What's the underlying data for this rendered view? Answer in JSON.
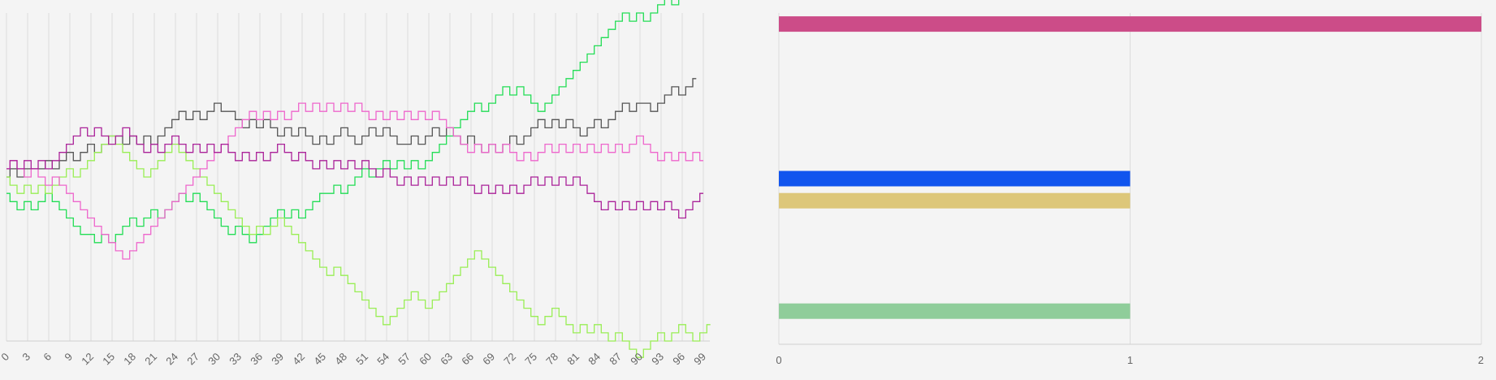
{
  "chart_data": [
    {
      "type": "line",
      "step": true,
      "x_range": [
        0,
        99
      ],
      "x_tick_step": 3,
      "y_range": [
        -20,
        20
      ],
      "grid": {
        "vertical": true,
        "horizontal": false
      },
      "series": [
        {
          "color": "#555555",
          "start": 0,
          "steps": [
            1,
            -1,
            1,
            0,
            0,
            1,
            -1,
            1,
            1,
            -1,
            1,
            1,
            -1,
            1,
            1,
            0,
            -1,
            1,
            -1,
            1,
            -1,
            1,
            1,
            1,
            1,
            -1,
            1,
            -1,
            1,
            1,
            -1,
            0,
            -1,
            -1,
            1,
            -1,
            1,
            -1,
            -1,
            1,
            -1,
            1,
            -1,
            -1,
            1,
            -1,
            1,
            1,
            -1,
            -1,
            1,
            1,
            -1,
            1,
            -1,
            -1,
            0,
            1,
            -1,
            1,
            1,
            -1,
            1,
            -1,
            -1,
            1,
            -1,
            -1,
            1,
            -1,
            1,
            1,
            -1,
            1,
            1,
            1,
            -1,
            1,
            -1,
            1,
            -1,
            -1,
            1,
            1,
            -1,
            1,
            1,
            1,
            -1,
            1,
            0,
            -1,
            1,
            1,
            1,
            -1,
            1,
            1
          ]
        },
        {
          "color": "#22dd55",
          "start": -2,
          "steps": [
            -1,
            -1,
            1,
            -1,
            1,
            1,
            -1,
            -1,
            -1,
            -1,
            -1,
            0,
            -1,
            1,
            -1,
            1,
            1,
            1,
            -1,
            1,
            1,
            -1,
            1,
            1,
            1,
            -1,
            1,
            -1,
            -1,
            -1,
            -1,
            -1,
            1,
            -1,
            -1,
            1,
            1,
            1,
            1,
            -1,
            1,
            -1,
            1,
            1,
            1,
            0,
            1,
            -1,
            1,
            1,
            1,
            -1,
            1,
            1,
            -1,
            1,
            -1,
            1,
            -1,
            1,
            1,
            1,
            1,
            1,
            1,
            1,
            1,
            -1,
            1,
            1,
            1,
            -1,
            1,
            -1,
            -1,
            -1,
            1,
            1,
            1,
            1,
            1,
            1,
            1,
            1,
            1,
            1,
            1,
            1,
            -1,
            1,
            -1,
            1,
            1,
            1,
            -1,
            1,
            1
          ]
        },
        {
          "color": "#99ee55",
          "start": 0,
          "steps": [
            -1,
            -1,
            1,
            -1,
            1,
            -1,
            1,
            1,
            1,
            -1,
            1,
            1,
            1,
            1,
            1,
            -1,
            -1,
            -1,
            -1,
            -1,
            1,
            1,
            1,
            1,
            -1,
            -1,
            -1,
            -1,
            -1,
            -1,
            -1,
            -1,
            -1,
            -1,
            -1,
            1,
            -1,
            1,
            1,
            -1,
            -1,
            -1,
            -1,
            -1,
            -1,
            -1,
            1,
            -1,
            -1,
            -1,
            -1,
            -1,
            -1,
            -1,
            1,
            1,
            1,
            1,
            -1,
            -1,
            1,
            1,
            1,
            1,
            1,
            1,
            1,
            -1,
            -1,
            -1,
            -1,
            -1,
            -1,
            -1,
            -1,
            -1,
            1,
            1,
            -1,
            -1,
            -1,
            1,
            -1,
            1,
            -1,
            -1,
            1,
            -1,
            -1,
            -1,
            1,
            1,
            1,
            -1,
            1,
            1,
            -1,
            -1,
            1,
            1
          ]
        },
        {
          "color": "#ee66cc",
          "start": 1,
          "steps": [
            1,
            -1,
            -1,
            1,
            -1,
            -1,
            1,
            -1,
            -1,
            -1,
            -1,
            -1,
            -1,
            -1,
            -1,
            -1,
            -1,
            1,
            1,
            1,
            1,
            1,
            1,
            1,
            1,
            1,
            1,
            1,
            1,
            1,
            1,
            1,
            1,
            1,
            1,
            -1,
            1,
            -1,
            1,
            -1,
            1,
            1,
            -1,
            1,
            -1,
            1,
            -1,
            1,
            -1,
            1,
            -1,
            -1,
            1,
            -1,
            1,
            -1,
            1,
            -1,
            1,
            -1,
            1,
            -1,
            -1,
            -1,
            -1,
            -1,
            1,
            -1,
            1,
            -1,
            1,
            -1,
            -1,
            1,
            -1,
            1,
            1,
            -1,
            1,
            -1,
            1,
            -1,
            1,
            -1,
            1,
            -1,
            1,
            -1,
            1,
            1,
            -1,
            -1,
            -1,
            1,
            -1,
            1,
            -1,
            1,
            -1
          ]
        },
        {
          "color": "#aa2299",
          "start": 1,
          "steps": [
            1,
            -1,
            1,
            -1,
            1,
            -1,
            1,
            1,
            1,
            1,
            1,
            -1,
            1,
            -1,
            -1,
            1,
            1,
            -1,
            -1,
            -1,
            1,
            -1,
            1,
            1,
            -1,
            -1,
            1,
            -1,
            1,
            -1,
            1,
            -1,
            -1,
            1,
            -1,
            1,
            -1,
            1,
            1,
            -1,
            -1,
            1,
            -1,
            -1,
            1,
            -1,
            1,
            -1,
            1,
            -1,
            1,
            -1,
            -1,
            1,
            -1,
            -1,
            1,
            -1,
            1,
            -1,
            1,
            -1,
            1,
            -1,
            1,
            -1,
            -1,
            1,
            -1,
            1,
            -1,
            1,
            -1,
            1,
            1,
            -1,
            1,
            -1,
            1,
            -1,
            1,
            -1,
            -1,
            -1,
            -1,
            1,
            -1,
            1,
            -1,
            1,
            -1,
            1,
            -1,
            1,
            -1,
            -1,
            1,
            1,
            1
          ]
        }
      ]
    },
    {
      "type": "bar",
      "orientation": "horizontal",
      "x_range": [
        0,
        2
      ],
      "x_ticks": [
        "0",
        "1",
        "2"
      ],
      "grid": {
        "vertical": true
      },
      "bars": [
        {
          "slot": 0,
          "value": 2,
          "color": "#cc4c88"
        },
        {
          "slot": 7,
          "value": 1,
          "color": "#1155ee"
        },
        {
          "slot": 8,
          "value": 1,
          "color": "#ddc77a"
        },
        {
          "slot": 13,
          "value": 1,
          "color": "#8fcd9a"
        }
      ]
    }
  ]
}
